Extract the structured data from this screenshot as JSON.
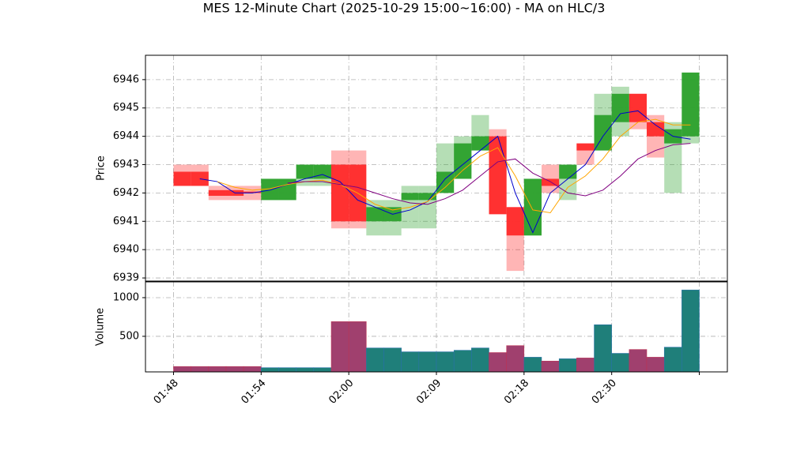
{
  "chart_data": {
    "type": "candlestick",
    "title": "MES 12-Minute Chart (2025-10-29 15:00~16:00) - MA on HLC/3",
    "ylabel": "Price",
    "volume_ylabel": "Volume",
    "xticks": [
      {
        "value": 0,
        "label": "01:48"
      },
      {
        "value": 5,
        "label": "01:54"
      },
      {
        "value": 10,
        "label": "02:00"
      },
      {
        "value": 15,
        "label": "02:09"
      },
      {
        "value": 20,
        "label": "02:18"
      },
      {
        "value": 25,
        "label": "02:30"
      },
      {
        "value": 30,
        "label": null
      }
    ],
    "xlim": [
      -1.6,
      31.6
    ],
    "ylim": [
      6938.89,
      6946.86
    ],
    "yticks": [
      6939,
      6940,
      6941,
      6942,
      6943,
      6944,
      6945,
      6946
    ],
    "volume_ylim": [
      40,
      1204
    ],
    "volume_yticks": [
      500,
      1000
    ],
    "grid": true,
    "up_color": "#2ca02c",
    "down_color": "#ff2a2a",
    "volume_up_color": "#1f7f7a",
    "volume_down_color": "#a0406e",
    "open": [
      6942.75,
      6942.75,
      6942.1,
      6942.1,
      6942.05,
      6941.75,
      6941.75,
      6942.5,
      6942.5,
      6943,
      6943,
      6941,
      6941,
      6941.75,
      6941.75,
      6942,
      6942.5,
      6943.5,
      6944,
      6941.5,
      6940.5,
      6942.5,
      6942.5,
      6943.75,
      6943.5,
      6944.5,
      6945.5,
      6944.5,
      6943.75,
      6944
    ],
    "high": [
      6943,
      6943,
      6942.25,
      6942.25,
      6942.25,
      6942.5,
      6942.5,
      6943,
      6943,
      6943.5,
      6943.5,
      6941.75,
      6941.75,
      6942.25,
      6942.25,
      6943.75,
      6944,
      6944.75,
      6944.25,
      6941.5,
      6942.5,
      6943,
      6943,
      6943.75,
      6945.5,
      6945.75,
      6945.5,
      6944.75,
      6944.5,
      6946.25
    ],
    "low": [
      6942.25,
      6942.25,
      6941.75,
      6941.75,
      6941.75,
      6941.75,
      6941.75,
      6942.25,
      6942.25,
      6940.75,
      6940.75,
      6940.5,
      6940.5,
      6940.75,
      6940.75,
      6942,
      6942.5,
      6943.5,
      6941.25,
      6939.25,
      6940.5,
      6942,
      6941.75,
      6943,
      6943.5,
      6944,
      6944.25,
      6943.25,
      6942,
      6943.75
    ],
    "close": [
      6942.25,
      6942.25,
      6941.9,
      6941.9,
      6942,
      6942.5,
      6942.5,
      6943,
      6943,
      6941,
      6941,
      6941.5,
      6941.5,
      6942,
      6942,
      6942.75,
      6943.75,
      6944,
      6941.25,
      6940.5,
      6942.5,
      6942.25,
      6943,
      6943.5,
      6944.75,
      6945.5,
      6944.5,
      6944,
      6944.25,
      6946.25
    ],
    "volume": [
      110,
      110,
      110,
      110,
      110,
      95,
      95,
      95,
      95,
      690,
      690,
      350,
      350,
      300,
      300,
      300,
      320,
      350,
      290,
      380,
      230,
      180,
      210,
      220,
      650,
      280,
      330,
      230,
      360,
      1100
    ],
    "series": [
      {
        "color": "#0000cc",
        "values": [
          null,
          6942.5,
          6942.4,
          6942.0,
          6942.0,
          6942.1,
          6942.3,
          6942.5,
          6942.65,
          6942.4,
          6941.75,
          6941.5,
          6941.25,
          6941.4,
          6941.7,
          6942.5,
          6943,
          6943.5,
          6944,
          6942,
          6940.6,
          6942,
          6942.5,
          6943,
          6944,
          6944.8,
          6944.9,
          6944.4,
          6944,
          6943.9
        ]
      },
      {
        "color": "#ffa500",
        "values": [
          null,
          null,
          6942.4,
          6942.2,
          6942.1,
          6942.15,
          6942.3,
          6942.4,
          6942.45,
          6942.3,
          6942.0,
          6941.6,
          6941.4,
          6941.5,
          6941.7,
          6942.2,
          6942.8,
          6943.3,
          6943.6,
          6942.6,
          6941.4,
          6941.3,
          6942.2,
          6942.6,
          6943.2,
          6944,
          6944.5,
          6944.6,
          6944.4,
          6944.4
        ]
      },
      {
        "color": "#800080",
        "values": [
          null,
          null,
          null,
          null,
          null,
          null,
          6942.35,
          6942.4,
          6942.4,
          6942.3,
          6942.2,
          6942.0,
          6941.8,
          6941.65,
          6941.6,
          6941.8,
          6942.1,
          6942.6,
          6943.1,
          6943.2,
          6942.7,
          6942.4,
          6942.0,
          6941.9,
          6942.1,
          6942.6,
          6943.2,
          6943.5,
          6943.7,
          6943.75
        ]
      }
    ]
  }
}
